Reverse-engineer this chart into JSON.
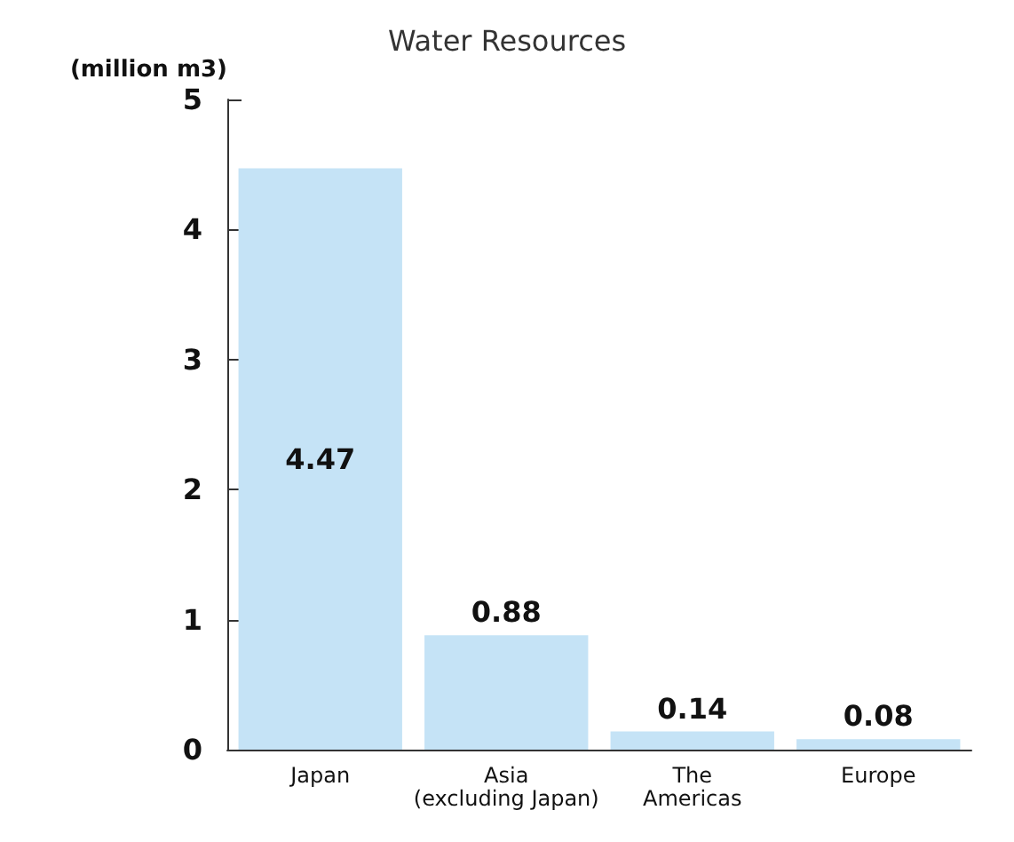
{
  "chart_data": {
    "type": "bar",
    "title": "Water Resources",
    "ylabel": "(million m3)",
    "categories": [
      "Japan",
      "Asia\n(excluding Japan)",
      "The\nAmericas",
      "Europe"
    ],
    "values": [
      4.47,
      0.88,
      0.14,
      0.08
    ],
    "color": "#c5e3f6",
    "ylim": [
      0,
      5
    ],
    "yticks": [
      0,
      1,
      2,
      3,
      4,
      5
    ],
    "grid": false,
    "data_labels": true
  }
}
